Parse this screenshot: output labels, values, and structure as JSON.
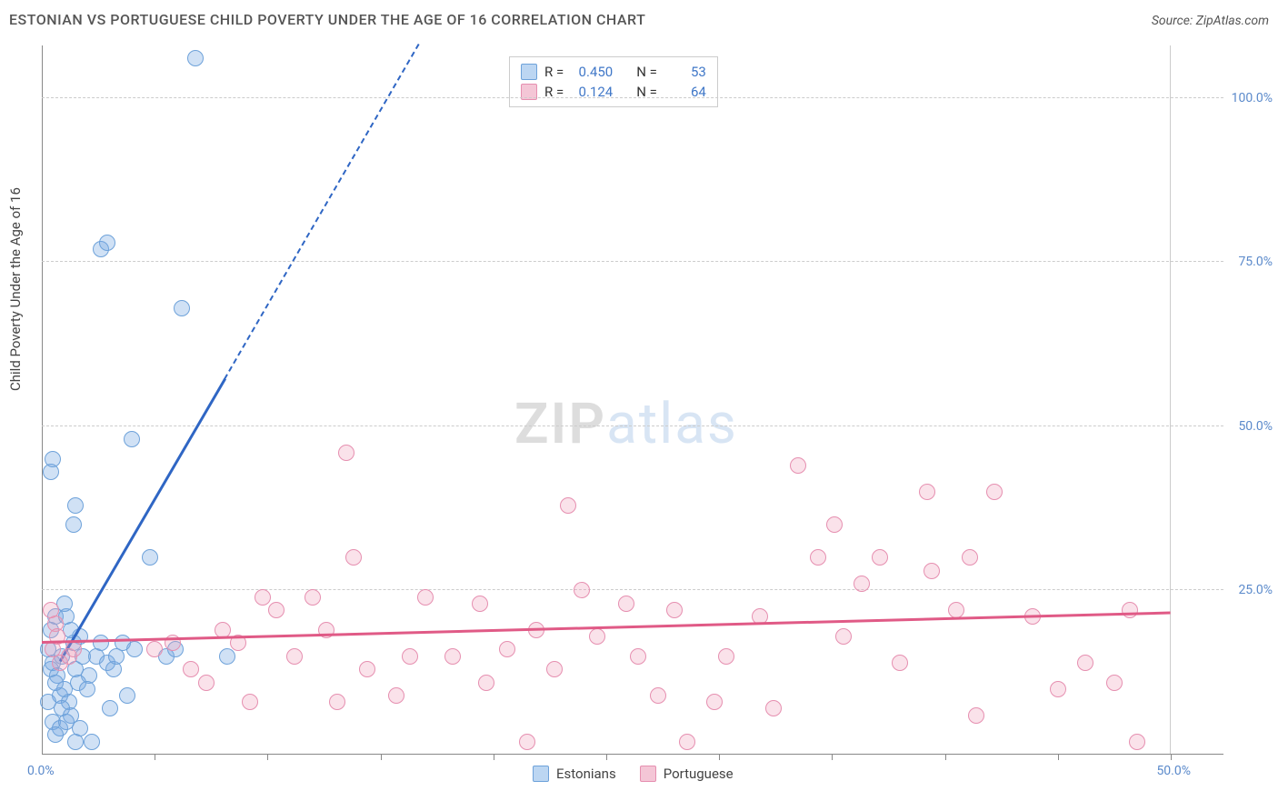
{
  "title": "ESTONIAN VS PORTUGUESE CHILD POVERTY UNDER THE AGE OF 16 CORRELATION CHART",
  "source_label": "Source: ZipAtlas.com",
  "y_axis_label": "Child Poverty Under the Age of 16",
  "watermark": {
    "part1": "ZIP",
    "part2": "atlas"
  },
  "chart": {
    "type": "scatter",
    "background_color": "#ffffff",
    "grid_color": "#cccccc",
    "axis_color": "#888888",
    "tick_label_color": "#5b8acb",
    "xlim": [
      0,
      50
    ],
    "ylim": [
      0,
      108
    ],
    "x_tick_positions": [
      5,
      10,
      15,
      20,
      25,
      30,
      35,
      40,
      45,
      50
    ],
    "x_tick_labels": {
      "left": "0.0%",
      "right": "50.0%"
    },
    "y_grid": [
      {
        "value": 25,
        "label": "25.0%"
      },
      {
        "value": 50,
        "label": "50.0%"
      },
      {
        "value": 75,
        "label": "75.0%"
      },
      {
        "value": 100,
        "label": "100.0%"
      }
    ],
    "marker_radius": 9,
    "marker_stroke_width": 1.5,
    "series": [
      {
        "id": "estonians",
        "label": "Estonians",
        "fill_color": "rgba(120,170,225,0.35)",
        "stroke_color": "#6ea2da",
        "swatch_fill": "#bcd6f2",
        "swatch_stroke": "#6ea2da",
        "R": "0.450",
        "N": "53",
        "regression": {
          "color": "#2f66c4",
          "width": 2.5,
          "x1": 0.8,
          "y1": 14,
          "x2": 8.1,
          "y2": 57,
          "dashed_extension": {
            "x1": 8.1,
            "y1": 57,
            "x2": 16.7,
            "y2": 108
          }
        },
        "points": [
          [
            0.4,
            13
          ],
          [
            0.5,
            14
          ],
          [
            0.3,
            16
          ],
          [
            0.7,
            12
          ],
          [
            0.8,
            9
          ],
          [
            1.0,
            10
          ],
          [
            1.2,
            8
          ],
          [
            0.6,
            11
          ],
          [
            0.9,
            7
          ],
          [
            1.3,
            6
          ],
          [
            0.5,
            5
          ],
          [
            1.5,
            13
          ],
          [
            1.8,
            15
          ],
          [
            2.1,
            12
          ],
          [
            1.4,
            17
          ],
          [
            1.7,
            18
          ],
          [
            2.4,
            15
          ],
          [
            2.9,
            14
          ],
          [
            1.6,
            11
          ],
          [
            3.2,
            13
          ],
          [
            2.0,
            10
          ],
          [
            0.4,
            19
          ],
          [
            0.6,
            21
          ],
          [
            1.1,
            21
          ],
          [
            1.0,
            23
          ],
          [
            1.3,
            19
          ],
          [
            2.6,
            17
          ],
          [
            0.3,
            8
          ],
          [
            0.8,
            4
          ],
          [
            1.7,
            4
          ],
          [
            1.5,
            2
          ],
          [
            2.2,
            2
          ],
          [
            0.6,
            3
          ],
          [
            1.1,
            5
          ],
          [
            0.9,
            15
          ],
          [
            0.4,
            43
          ],
          [
            0.5,
            45
          ],
          [
            1.4,
            35
          ],
          [
            1.5,
            38
          ],
          [
            4.0,
            48
          ],
          [
            4.8,
            30
          ],
          [
            6.8,
            106
          ],
          [
            6.2,
            68
          ],
          [
            2.6,
            77
          ],
          [
            2.9,
            78
          ],
          [
            3.3,
            15
          ],
          [
            4.1,
            16
          ],
          [
            3.6,
            17
          ],
          [
            5.5,
            15
          ],
          [
            5.9,
            16
          ],
          [
            8.2,
            15
          ],
          [
            3.0,
            7
          ],
          [
            3.8,
            9
          ]
        ]
      },
      {
        "id": "portuguese",
        "label": "Portuguese",
        "fill_color": "rgba(240,160,185,0.30)",
        "stroke_color": "#e68fb0",
        "swatch_fill": "#f4c6d6",
        "swatch_stroke": "#e68fb0",
        "R": "0.124",
        "N": "64",
        "regression": {
          "color": "#e05a86",
          "width": 2.5,
          "x1": 0,
          "y1": 17,
          "x2": 50,
          "y2": 21.5
        },
        "points": [
          [
            0.5,
            16
          ],
          [
            0.6,
            20
          ],
          [
            0.7,
            18
          ],
          [
            0.4,
            22
          ],
          [
            0.8,
            14
          ],
          [
            1.2,
            15
          ],
          [
            1.4,
            16
          ],
          [
            5.0,
            16
          ],
          [
            5.8,
            17
          ],
          [
            6.6,
            13
          ],
          [
            7.3,
            11
          ],
          [
            8.0,
            19
          ],
          [
            8.7,
            17
          ],
          [
            9.2,
            8
          ],
          [
            9.8,
            24
          ],
          [
            10.4,
            22
          ],
          [
            11.2,
            15
          ],
          [
            12.0,
            24
          ],
          [
            12.6,
            19
          ],
          [
            13.1,
            8
          ],
          [
            13.8,
            30
          ],
          [
            13.5,
            46
          ],
          [
            14.4,
            13
          ],
          [
            15.7,
            9
          ],
          [
            16.3,
            15
          ],
          [
            17.0,
            24
          ],
          [
            18.2,
            15
          ],
          [
            19.4,
            23
          ],
          [
            19.7,
            11
          ],
          [
            20.6,
            16
          ],
          [
            21.5,
            2
          ],
          [
            21.9,
            19
          ],
          [
            22.7,
            13
          ],
          [
            23.3,
            38
          ],
          [
            23.9,
            25
          ],
          [
            24.6,
            18
          ],
          [
            25.9,
            23
          ],
          [
            26.4,
            15
          ],
          [
            27.3,
            9
          ],
          [
            28.0,
            22
          ],
          [
            28.6,
            2
          ],
          [
            29.8,
            8
          ],
          [
            30.3,
            15
          ],
          [
            31.8,
            21
          ],
          [
            32.4,
            7
          ],
          [
            33.5,
            44
          ],
          [
            34.4,
            30
          ],
          [
            35.1,
            35
          ],
          [
            35.5,
            18
          ],
          [
            36.3,
            26
          ],
          [
            37.1,
            30
          ],
          [
            38.0,
            14
          ],
          [
            39.4,
            28
          ],
          [
            39.2,
            40
          ],
          [
            40.5,
            22
          ],
          [
            41.1,
            30
          ],
          [
            41.4,
            6
          ],
          [
            42.2,
            40
          ],
          [
            43.9,
            21
          ],
          [
            45.0,
            10
          ],
          [
            46.2,
            14
          ],
          [
            47.5,
            11
          ],
          [
            48.5,
            2
          ],
          [
            48.2,
            22
          ]
        ]
      }
    ]
  },
  "stats_labels": {
    "R": "R =",
    "N": "N ="
  },
  "legend_swatch_size": 18
}
